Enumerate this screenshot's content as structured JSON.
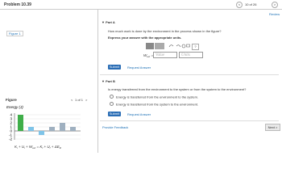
{
  "header": {
    "title": "Problem 10.39",
    "pager": {
      "prev": "<",
      "position": "10 of 26",
      "next": ">"
    },
    "review": "Review"
  },
  "left": {
    "figure_link": "Figure 1",
    "figure_label": "Figure",
    "figure_pager": {
      "prev": "<",
      "position": "1 of 1",
      "next": ">"
    }
  },
  "chart_data": {
    "type": "bar",
    "title": "Energy (J)",
    "categories": [
      {
        "symbol": "K",
        "sub": "i"
      },
      {
        "symbol": "U",
        "sub": "i"
      },
      {
        "symbol": "W",
        "sub": "ext"
      },
      {
        "symbol": "K",
        "sub": "f"
      },
      {
        "symbol": "U",
        "sub": "f"
      },
      {
        "symbol": "ΔE",
        "sub": "th"
      }
    ],
    "operators": [
      "+",
      "+",
      "=",
      "+",
      "+"
    ],
    "values": [
      4,
      1,
      -1,
      1,
      2,
      1
    ],
    "colors": [
      "#3fae49",
      "#7fc4e8",
      "#7fc4e8",
      "#9fb0c0",
      "#9fb0c0",
      "#9fb0c0"
    ],
    "ylim": [
      -2,
      4
    ],
    "yticks": [
      4,
      3,
      2,
      1,
      0,
      -1,
      -2
    ]
  },
  "part_a": {
    "label": "Part A",
    "question": "How much work is done by the environment in the process shown in the figure?",
    "instruction": "Express your answer with the appropriate units.",
    "help": "?",
    "answer": {
      "symbol": "W",
      "sub": "ext",
      "equals": "=",
      "value_placeholder": "Value",
      "units_placeholder": "Units"
    },
    "submit": "Submit",
    "request": "Request Answer"
  },
  "part_b": {
    "label": "Part B",
    "question": "Is energy transferred from the environment to the system or from the system to the environment?",
    "options": [
      "Energy is transferred from the environment to the system.",
      "Energy is transferred from the system to the environment."
    ],
    "submit": "Submit",
    "request": "Request Answer"
  },
  "footer": {
    "feedback": "Provide Feedback",
    "next": "Next >"
  }
}
